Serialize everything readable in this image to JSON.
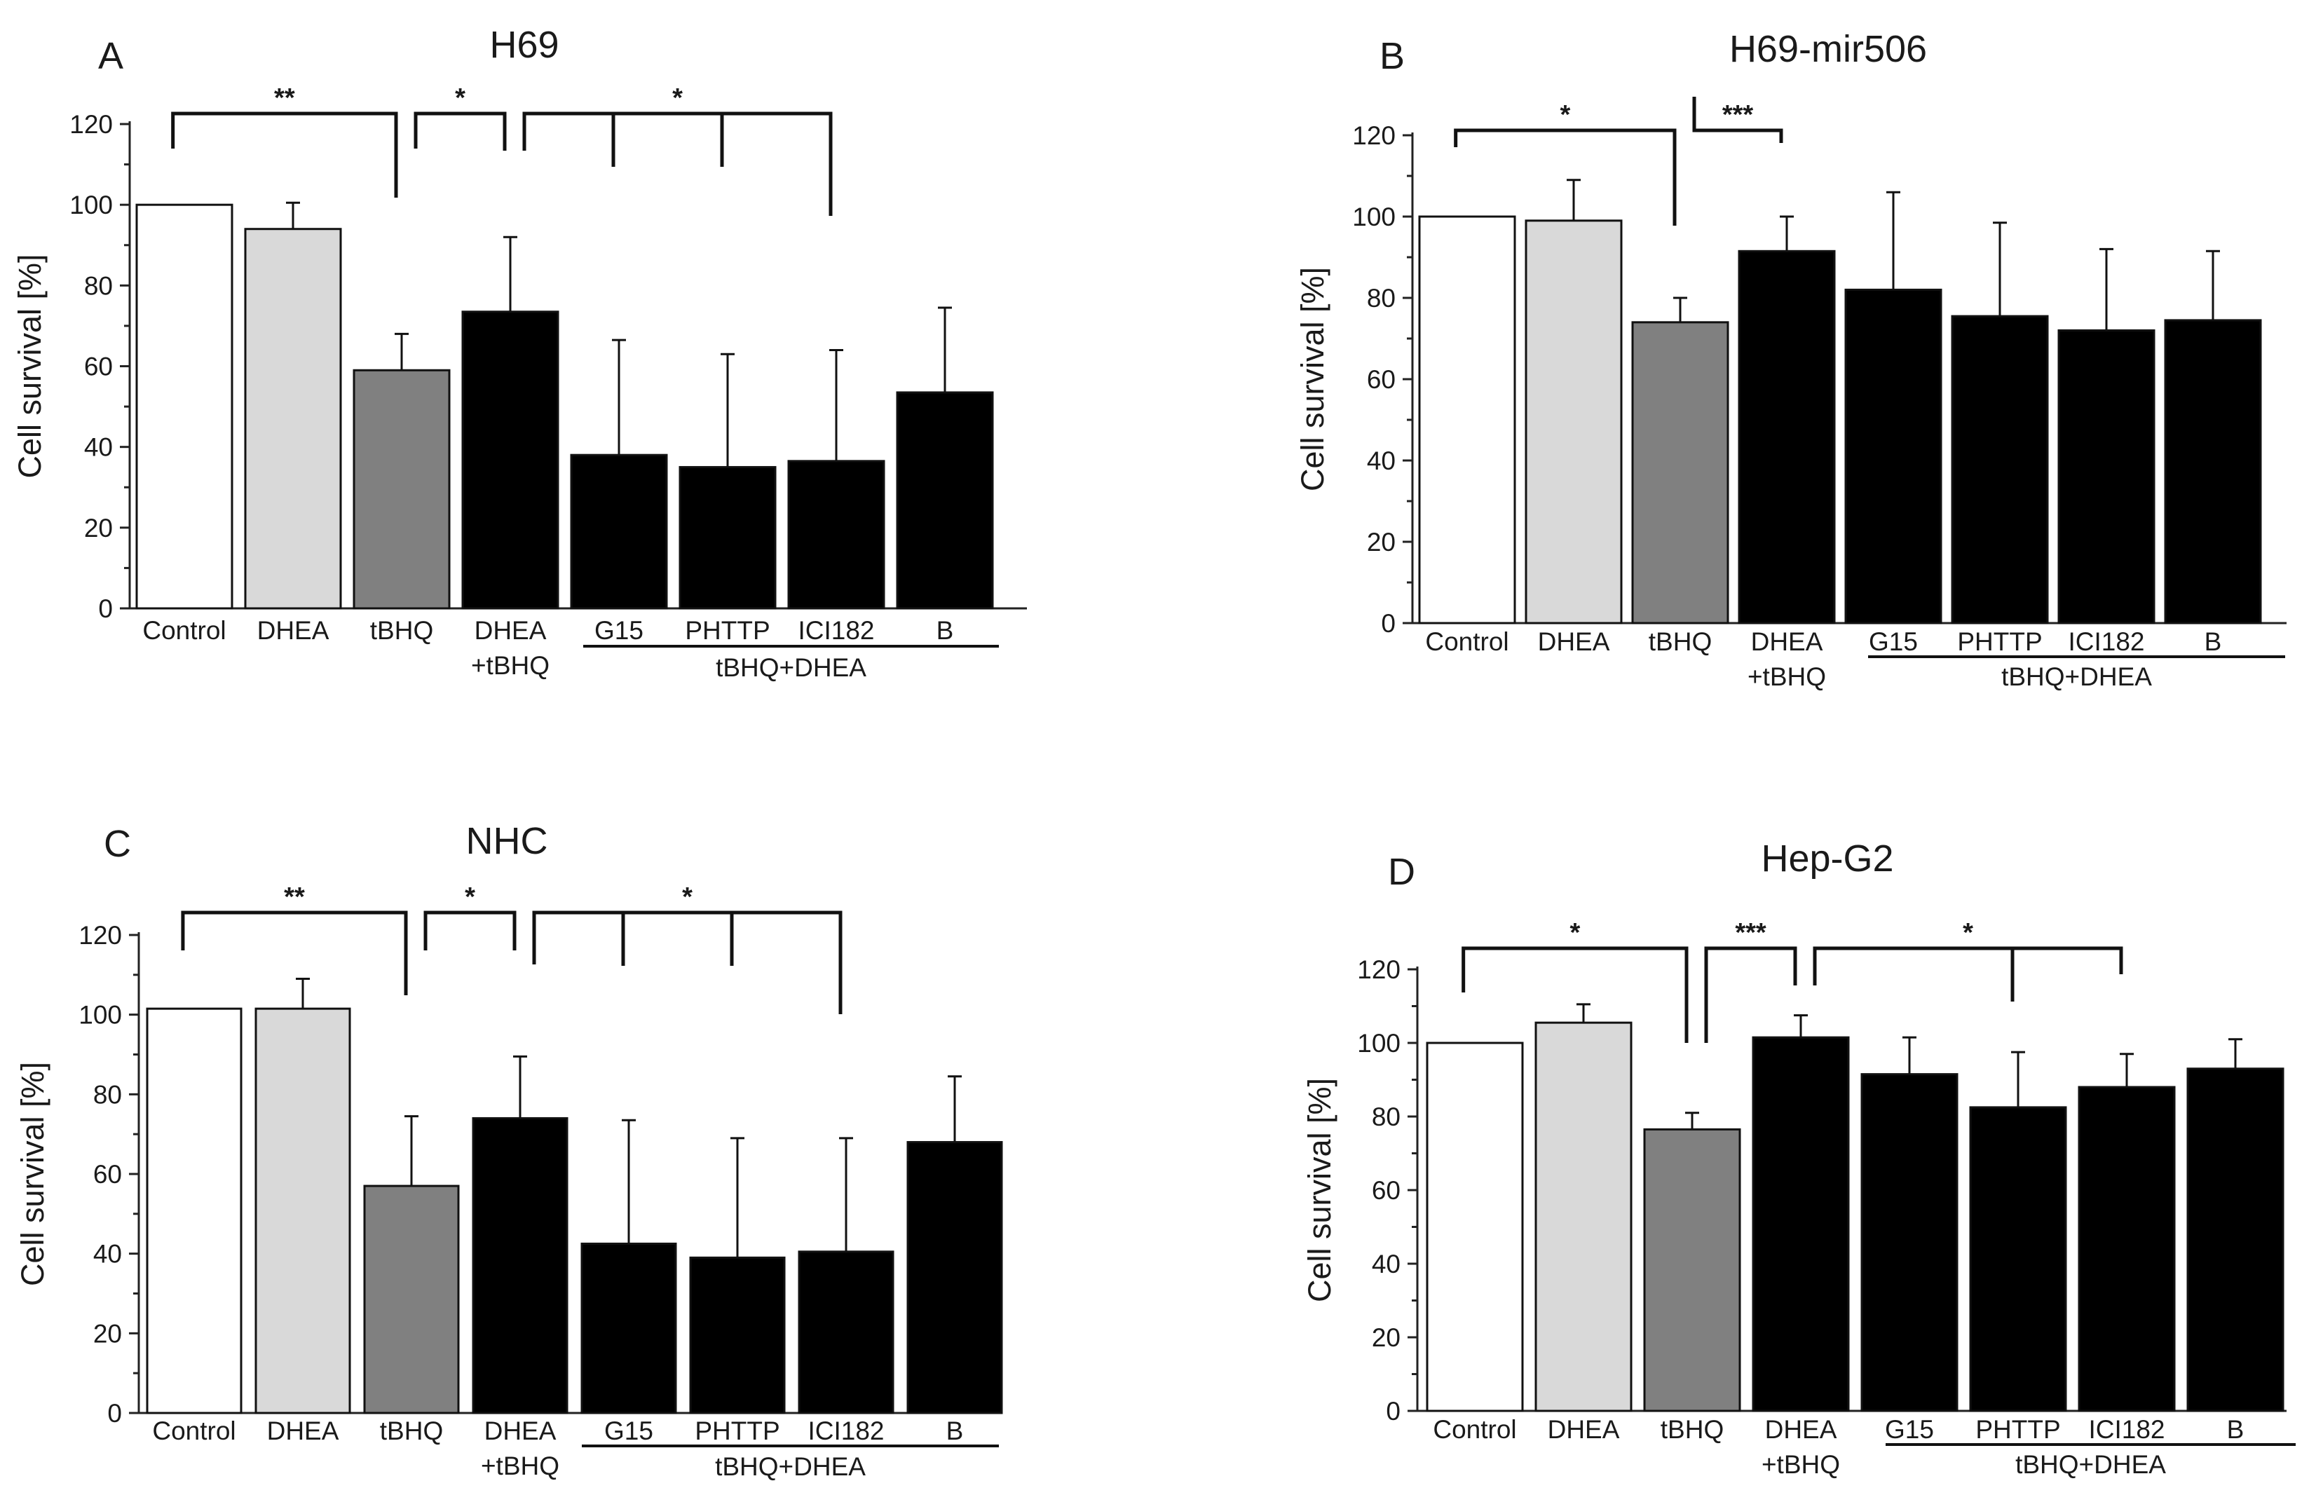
{
  "chart_data": [
    {
      "type": "bar",
      "panel": "A",
      "title": "H69",
      "ylabel": "Cell survival [%]",
      "ylim": [
        0,
        120
      ],
      "yticks": [
        0,
        20,
        40,
        60,
        80,
        100,
        120
      ],
      "categories": [
        "Control",
        "DHEA",
        "tBHQ",
        "DHEA\n+tBHQ",
        "G15",
        "PHTTP",
        "ICI182",
        "B"
      ],
      "group_label": "tBHQ+DHEA",
      "values": [
        100,
        94,
        59,
        73.5,
        38,
        35,
        36.5,
        53.5
      ],
      "errors": [
        0,
        6.5,
        9,
        18.5,
        28.5,
        28,
        27.5,
        21
      ],
      "colors": [
        "#ffffff",
        "#d9d9d9",
        "#808080",
        "#000000",
        "#000000",
        "#000000",
        "#000000",
        "#000000"
      ],
      "brackets": [
        {
          "label": "**",
          "left": 0,
          "drops": [
            2
          ]
        },
        {
          "label": "*",
          "left": 2,
          "drops": [
            3
          ]
        },
        {
          "label": "*",
          "left": 3,
          "drops": [
            4,
            5,
            6
          ]
        }
      ]
    },
    {
      "type": "bar",
      "panel": "B",
      "title": "H69-mir506",
      "ylabel": "Cell survival [%]",
      "ylim": [
        0,
        120
      ],
      "yticks": [
        0,
        20,
        40,
        60,
        80,
        100,
        120
      ],
      "categories": [
        "Control",
        "DHEA",
        "tBHQ",
        "DHEA\n+tBHQ",
        "G15",
        "PHTTP",
        "ICI182",
        "B"
      ],
      "group_label": "tBHQ+DHEA",
      "values": [
        100,
        99,
        74,
        91.5,
        82,
        75.5,
        72,
        74.5
      ],
      "errors": [
        0,
        10,
        6,
        8.5,
        24,
        23,
        20,
        17
      ],
      "colors": [
        "#ffffff",
        "#d9d9d9",
        "#808080",
        "#000000",
        "#000000",
        "#000000",
        "#000000",
        "#000000"
      ],
      "brackets": [
        {
          "label": "*",
          "left": 0,
          "drops": [
            2
          ]
        },
        {
          "label": "***",
          "left": 2,
          "drops": [
            3
          ]
        }
      ]
    },
    {
      "type": "bar",
      "panel": "C",
      "title": "NHC",
      "ylabel": "Cell survival [%]",
      "ylim": [
        0,
        120
      ],
      "yticks": [
        0,
        20,
        40,
        60,
        80,
        100,
        120
      ],
      "categories": [
        "Control",
        "DHEA",
        "tBHQ",
        "DHEA\n+tBHQ",
        "G15",
        "PHTTP",
        "ICI182",
        "B"
      ],
      "group_label": "tBHQ+DHEA",
      "values": [
        101.5,
        101.5,
        57,
        74,
        42.5,
        39,
        40.5,
        68
      ],
      "errors": [
        0,
        7.5,
        17.5,
        15.5,
        31,
        30,
        28.5,
        16.5
      ],
      "colors": [
        "#ffffff",
        "#d9d9d9",
        "#808080",
        "#000000",
        "#000000",
        "#000000",
        "#000000",
        "#000000"
      ],
      "brackets": [
        {
          "label": "**",
          "left": 0,
          "drops": [
            2
          ]
        },
        {
          "label": "*",
          "left": 2,
          "drops": [
            3
          ]
        },
        {
          "label": "*",
          "left": 3,
          "drops": [
            4,
            5,
            6
          ]
        }
      ]
    },
    {
      "type": "bar",
      "panel": "D",
      "title": "Hep-G2",
      "ylabel": "Cell survival [%]",
      "ylim": [
        0,
        120
      ],
      "yticks": [
        0,
        20,
        40,
        60,
        80,
        100,
        120
      ],
      "categories": [
        "Control",
        "DHEA",
        "tBHQ",
        "DHEA\n+tBHQ",
        "G15",
        "PHTTP",
        "ICI182",
        "B"
      ],
      "group_label": "tBHQ+DHEA",
      "values": [
        100,
        105.5,
        76.5,
        101.5,
        91.5,
        82.5,
        88,
        93
      ],
      "errors": [
        0,
        5,
        4.5,
        6,
        10,
        15,
        9,
        8
      ],
      "colors": [
        "#ffffff",
        "#d9d9d9",
        "#808080",
        "#000000",
        "#000000",
        "#000000",
        "#000000",
        "#000000"
      ],
      "brackets": [
        {
          "label": "*",
          "left": 0,
          "drops": [
            2
          ]
        },
        {
          "label": "***",
          "left": 2,
          "drops": [
            3
          ]
        },
        {
          "label": "*",
          "left": 3,
          "drops": [
            5,
            6
          ]
        }
      ]
    }
  ]
}
